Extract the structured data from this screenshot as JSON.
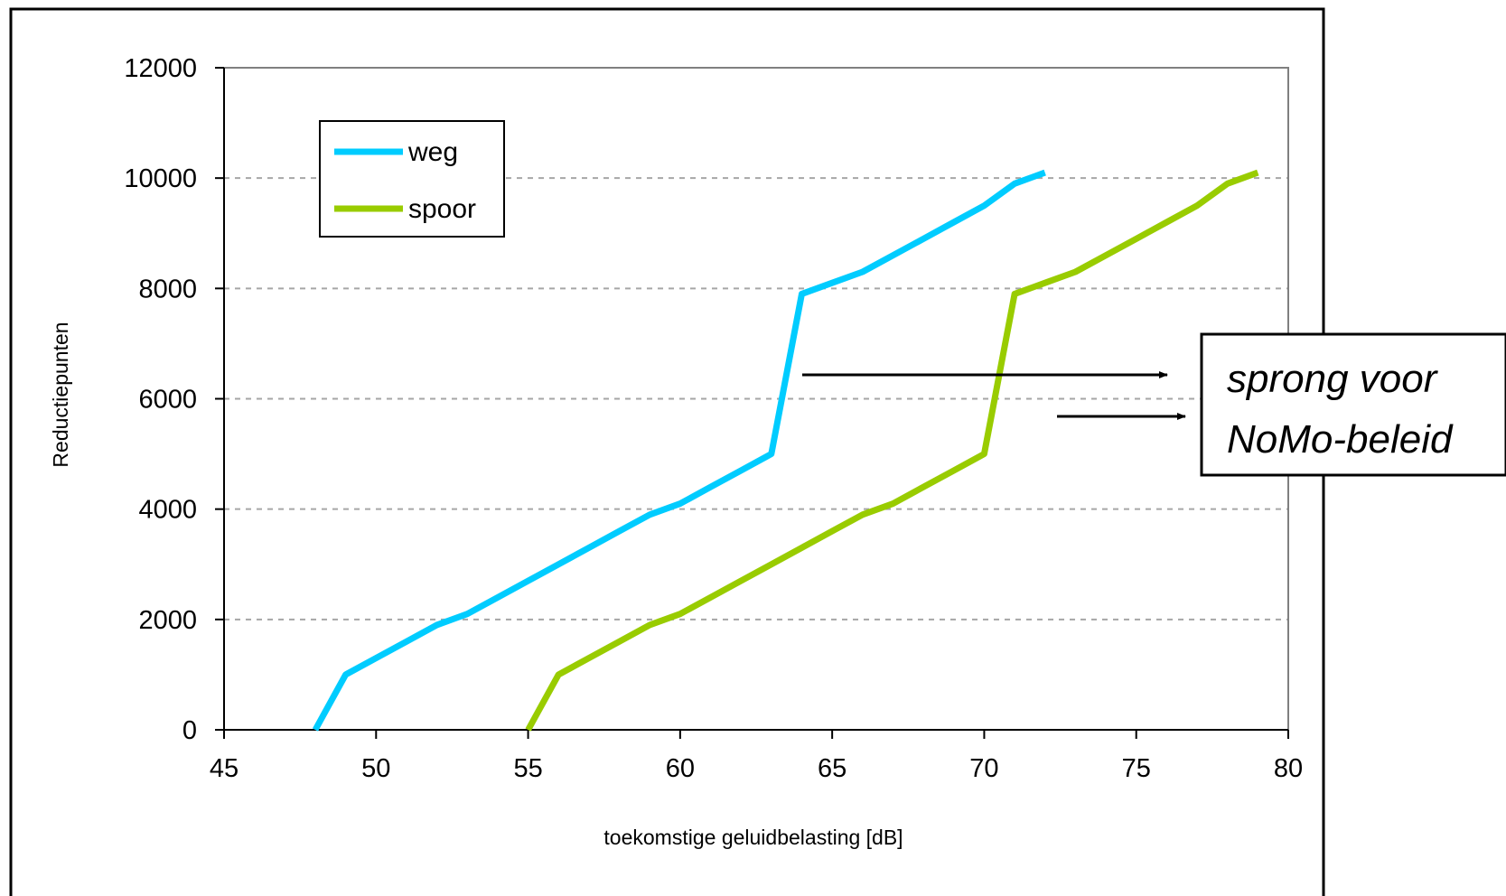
{
  "chart_data": {
    "type": "line",
    "xlabel": "toekomstige geluidbelasting [dB]",
    "ylabel": "Reductiepunten",
    "xlim": [
      45,
      80
    ],
    "ylim": [
      0,
      12000
    ],
    "xticks": [
      45,
      50,
      55,
      60,
      65,
      70,
      75,
      80
    ],
    "yticks": [
      0,
      2000,
      4000,
      6000,
      8000,
      10000,
      12000
    ],
    "grid": "horizontal dashed",
    "legend_position": "top-left",
    "series": [
      {
        "name": "weg",
        "color": "#00ccff",
        "x": [
          48,
          49,
          50,
          51,
          52,
          53,
          54,
          55,
          56,
          57,
          58,
          59,
          60,
          61,
          62,
          63,
          64,
          65,
          66,
          67,
          68,
          69,
          70,
          71,
          72
        ],
        "y": [
          0,
          1000,
          1300,
          1600,
          1900,
          2100,
          2400,
          2700,
          3000,
          3300,
          3600,
          3900,
          4100,
          4400,
          4700,
          5000,
          7900,
          8100,
          8300,
          8600,
          8900,
          9200,
          9500,
          9900,
          10100
        ]
      },
      {
        "name": "spoor",
        "color": "#99cc00",
        "x": [
          55,
          56,
          57,
          58,
          59,
          60,
          61,
          62,
          63,
          64,
          65,
          66,
          67,
          68,
          69,
          70,
          71,
          72,
          73,
          74,
          75,
          76,
          77,
          78,
          79
        ],
        "y": [
          0,
          1000,
          1300,
          1600,
          1900,
          2100,
          2400,
          2700,
          3000,
          3300,
          3600,
          3900,
          4100,
          4400,
          4700,
          5000,
          7900,
          8100,
          8300,
          8600,
          8900,
          9200,
          9500,
          9900,
          10100
        ]
      }
    ],
    "annotation": {
      "line1": "sprong voor",
      "line2": "NoMo-beleid"
    },
    "colors": {
      "frame": "#000000",
      "grid": "#a6a6a6",
      "plot_border": "#808080",
      "arrow": "#000000"
    }
  }
}
